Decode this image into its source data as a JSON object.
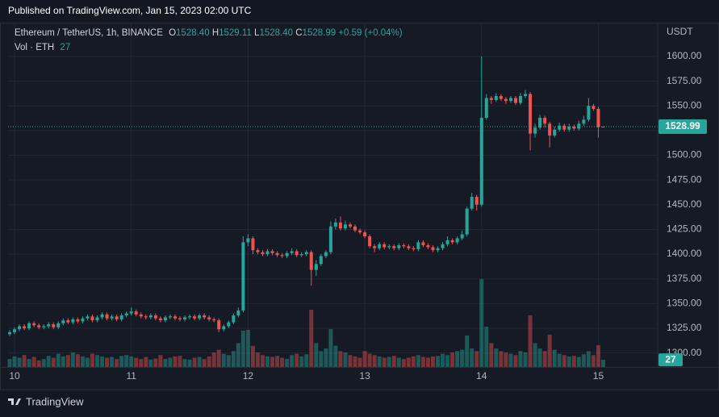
{
  "header": {
    "title": "Published on TradingView.com, Jan 15, 2023 02:00 UTC"
  },
  "legend": {
    "symbol": "Ethereum / TetherUS, 1h, BINANCE",
    "o_label": "O",
    "o": "1528.40",
    "h_label": "H",
    "h": "1529.11",
    "l_label": "L",
    "l": "1528.40",
    "c_label": "C",
    "c": "1528.99",
    "change": "+0.59 (+0.04%)",
    "volume_label": "Vol · ETH",
    "volume": "27"
  },
  "footer": {
    "brand": "TradingView"
  },
  "chart_data": {
    "type": "candlestick",
    "y_axis_label": "USDT",
    "up_color": "#26a69a",
    "down_color": "#ef5350",
    "grid": true,
    "last_price": 1528.99,
    "last_price_label": "1528.99",
    "last_volume_label": "27",
    "xlim": [
      -1.33,
      132.2
    ],
    "xticks": [
      {
        "value": 0,
        "label": "10"
      },
      {
        "value": 24,
        "label": "11"
      },
      {
        "value": 48,
        "label": "12"
      },
      {
        "value": 72,
        "label": "13"
      },
      {
        "value": 96,
        "label": "14"
      },
      {
        "value": 120,
        "label": "15"
      }
    ],
    "ylim": [
      1285.8,
      1634.3
    ],
    "yticks": [
      {
        "value": 1300,
        "label": "1300.00"
      },
      {
        "value": 1325,
        "label": "1325.00"
      },
      {
        "value": 1350,
        "label": "1350.00"
      },
      {
        "value": 1375,
        "label": "1375.00"
      },
      {
        "value": 1400,
        "label": "1400.00"
      },
      {
        "value": 1425,
        "label": "1425.00"
      },
      {
        "value": 1450,
        "label": "1450.00"
      },
      {
        "value": 1475,
        "label": "1475.00"
      },
      {
        "value": 1500,
        "label": "1500.00"
      },
      {
        "value": 1525,
        "label": "1525.00"
      },
      {
        "value": 1550,
        "label": "1550.00"
      },
      {
        "value": 1575,
        "label": "1575.00"
      },
      {
        "value": 1600,
        "label": "1600.00"
      }
    ],
    "volume_lim": [
      0,
      1300
    ],
    "x": [
      -1,
      0,
      1,
      2,
      3,
      4,
      5,
      6,
      7,
      8,
      9,
      10,
      11,
      12,
      13,
      14,
      15,
      16,
      17,
      18,
      19,
      20,
      21,
      22,
      23,
      24,
      25,
      26,
      27,
      28,
      29,
      30,
      31,
      32,
      33,
      34,
      35,
      36,
      37,
      38,
      39,
      40,
      41,
      42,
      43,
      44,
      45,
      46,
      47,
      48,
      49,
      50,
      51,
      52,
      53,
      54,
      55,
      56,
      57,
      58,
      59,
      60,
      61,
      62,
      63,
      64,
      65,
      66,
      67,
      68,
      69,
      70,
      71,
      72,
      73,
      74,
      75,
      76,
      77,
      78,
      79,
      80,
      81,
      82,
      83,
      84,
      85,
      86,
      87,
      88,
      89,
      90,
      91,
      92,
      93,
      94,
      95,
      96,
      97,
      98,
      99,
      100,
      101,
      102,
      103,
      104,
      105,
      106,
      107,
      108,
      109,
      110,
      111,
      112,
      113,
      114,
      115,
      116,
      117,
      118,
      119,
      120,
      121
    ],
    "open": [
      1319,
      1321,
      1324,
      1327,
      1325,
      1330,
      1328,
      1326,
      1327,
      1329,
      1326,
      1330,
      1333,
      1331,
      1334,
      1332,
      1335,
      1337,
      1333,
      1336,
      1339,
      1335,
      1337,
      1334,
      1338,
      1340,
      1342,
      1339,
      1337,
      1336,
      1338,
      1335,
      1333,
      1336,
      1337,
      1335,
      1334,
      1336,
      1337,
      1335,
      1338,
      1336,
      1334,
      1333,
      1324,
      1327,
      1331,
      1338,
      1343,
      1412,
      1416,
      1404,
      1402,
      1400,
      1403,
      1401,
      1399,
      1398,
      1401,
      1403,
      1399,
      1400,
      1402,
      1384,
      1390,
      1398,
      1402,
      1428,
      1432,
      1426,
      1430,
      1428,
      1424,
      1422,
      1418,
      1408,
      1406,
      1410,
      1407,
      1408,
      1406,
      1409,
      1408,
      1406,
      1405,
      1412,
      1409,
      1407,
      1404,
      1406,
      1410,
      1414,
      1412,
      1416,
      1420,
      1446,
      1458,
      1450,
      1538,
      1558,
      1556,
      1560,
      1557,
      1555,
      1558,
      1553,
      1560,
      1562,
      1522,
      1528,
      1538,
      1532,
      1520,
      1526,
      1530,
      1526,
      1529,
      1527,
      1532,
      1536,
      1550,
      1547,
      1528.4
    ],
    "high": [
      1323,
      1326,
      1329,
      1329,
      1332,
      1332,
      1330,
      1329,
      1331,
      1331,
      1332,
      1335,
      1335,
      1336,
      1336,
      1337,
      1339,
      1339,
      1338,
      1341,
      1341,
      1339,
      1339,
      1340,
      1342,
      1346,
      1344,
      1341,
      1339,
      1340,
      1340,
      1337,
      1338,
      1339,
      1339,
      1337,
      1338,
      1339,
      1339,
      1340,
      1340,
      1338,
      1336,
      1335,
      1329,
      1333,
      1340,
      1346,
      1418,
      1420,
      1418,
      1406,
      1404,
      1405,
      1405,
      1403,
      1401,
      1403,
      1406,
      1405,
      1402,
      1404,
      1404,
      1394,
      1400,
      1404,
      1433,
      1436,
      1438,
      1434,
      1432,
      1430,
      1426,
      1424,
      1420,
      1410,
      1412,
      1412,
      1410,
      1410,
      1411,
      1411,
      1410,
      1408,
      1414,
      1414,
      1411,
      1409,
      1408,
      1412,
      1418,
      1416,
      1418,
      1424,
      1448,
      1462,
      1460,
      1600,
      1562,
      1560,
      1563,
      1562,
      1559,
      1560,
      1560,
      1563,
      1566,
      1564,
      1532,
      1541,
      1540,
      1534,
      1529,
      1533,
      1532,
      1532,
      1531,
      1535,
      1540,
      1558,
      1552,
      1549,
      1529.11
    ],
    "low": [
      1317,
      1319,
      1322,
      1323,
      1323,
      1326,
      1324,
      1324,
      1325,
      1324,
      1324,
      1328,
      1329,
      1329,
      1330,
      1330,
      1333,
      1331,
      1331,
      1334,
      1333,
      1333,
      1332,
      1332,
      1336,
      1338,
      1337,
      1335,
      1334,
      1334,
      1333,
      1331,
      1331,
      1334,
      1333,
      1332,
      1332,
      1334,
      1333,
      1333,
      1334,
      1332,
      1331,
      1321,
      1322,
      1325,
      1329,
      1336,
      1341,
      1408,
      1400,
      1400,
      1398,
      1398,
      1399,
      1397,
      1396,
      1396,
      1399,
      1397,
      1397,
      1398,
      1368,
      1378,
      1388,
      1396,
      1400,
      1425,
      1424,
      1424,
      1426,
      1422,
      1420,
      1416,
      1406,
      1402,
      1404,
      1405,
      1405,
      1404,
      1404,
      1406,
      1404,
      1403,
      1403,
      1407,
      1405,
      1402,
      1402,
      1404,
      1408,
      1410,
      1410,
      1414,
      1418,
      1444,
      1444,
      1448,
      1536,
      1552,
      1554,
      1555,
      1552,
      1553,
      1551,
      1551,
      1558,
      1505,
      1518,
      1526,
      1528,
      1508,
      1518,
      1524,
      1524,
      1524,
      1525,
      1525,
      1530,
      1534,
      1545,
      1518,
      1528.4
    ],
    "close": [
      1321,
      1324,
      1327,
      1325,
      1330,
      1328,
      1326,
      1327,
      1329,
      1326,
      1330,
      1333,
      1331,
      1334,
      1332,
      1335,
      1337,
      1333,
      1336,
      1339,
      1335,
      1337,
      1334,
      1338,
      1340,
      1342,
      1339,
      1337,
      1336,
      1338,
      1335,
      1333,
      1336,
      1337,
      1335,
      1334,
      1336,
      1337,
      1335,
      1338,
      1336,
      1334,
      1333,
      1324,
      1327,
      1331,
      1338,
      1343,
      1412,
      1416,
      1404,
      1402,
      1400,
      1403,
      1401,
      1399,
      1398,
      1401,
      1403,
      1399,
      1400,
      1402,
      1384,
      1390,
      1398,
      1402,
      1428,
      1432,
      1426,
      1430,
      1428,
      1424,
      1422,
      1418,
      1408,
      1406,
      1410,
      1407,
      1408,
      1406,
      1409,
      1408,
      1406,
      1405,
      1412,
      1409,
      1407,
      1404,
      1406,
      1410,
      1414,
      1412,
      1416,
      1420,
      1446,
      1458,
      1450,
      1538,
      1558,
      1556,
      1560,
      1557,
      1555,
      1558,
      1553,
      1560,
      1562,
      1522,
      1528,
      1538,
      1532,
      1520,
      1526,
      1530,
      1526,
      1529,
      1527,
      1532,
      1536,
      1550,
      1547,
      1528.4,
      1528.99
    ],
    "volume": [
      30,
      40,
      35,
      45,
      30,
      38,
      25,
      30,
      42,
      35,
      50,
      40,
      45,
      55,
      48,
      40,
      35,
      50,
      45,
      40,
      35,
      38,
      30,
      42,
      45,
      40,
      35,
      30,
      38,
      28,
      32,
      45,
      30,
      35,
      40,
      42,
      30,
      28,
      35,
      38,
      30,
      40,
      55,
      65,
      50,
      45,
      60,
      90,
      137,
      140,
      80,
      55,
      45,
      40,
      38,
      42,
      35,
      30,
      45,
      50,
      40,
      48,
      216,
      90,
      60,
      70,
      143,
      80,
      60,
      55,
      45,
      40,
      35,
      60,
      50,
      45,
      40,
      35,
      38,
      42,
      35,
      30,
      35,
      40,
      45,
      38,
      35,
      40,
      42,
      50,
      45,
      55,
      60,
      65,
      119,
      70,
      60,
      332,
      152,
      90,
      70,
      60,
      55,
      50,
      45,
      60,
      55,
      195,
      90,
      70,
      60,
      122,
      65,
      50,
      45,
      40,
      42,
      38,
      48,
      60,
      45,
      82,
      27
    ]
  }
}
